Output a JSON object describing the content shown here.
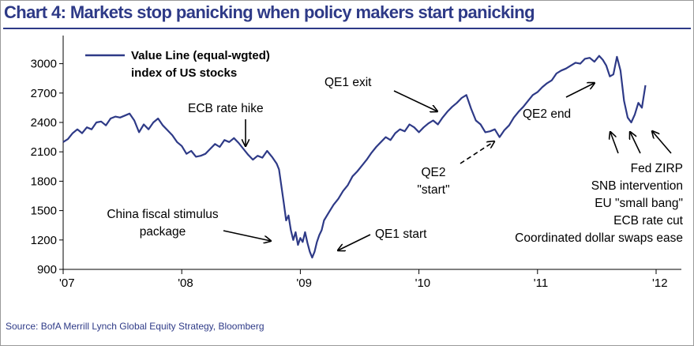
{
  "title": "Chart 4: Markets stop panicking when policy makers start panicking",
  "source": "Source: BofA Merrill Lynch Global Equity Strategy, Bloomberg",
  "colors": {
    "title": "#2e3a87",
    "series": "#2e3a87",
    "axis": "#000000",
    "arrow": "#000000"
  },
  "chart_data": {
    "type": "line",
    "title": "Chart 4: Markets stop panicking when policy makers start panicking",
    "xlabel": "",
    "ylabel": "",
    "xlim": [
      2007.0,
      2012.2
    ],
    "ylim": [
      900,
      3150
    ],
    "x_ticks": [
      2007,
      2008,
      2009,
      2010,
      2011,
      2012
    ],
    "x_tick_labels": [
      "'07",
      "'08",
      "'09",
      "'10",
      "'11",
      "'12"
    ],
    "y_ticks": [
      900,
      1200,
      1500,
      1800,
      2100,
      2400,
      2700,
      3000
    ],
    "y_tick_labels": [
      "900",
      "1200",
      "1500",
      "1800",
      "2100",
      "2400",
      "2700",
      "3000"
    ],
    "grid": false,
    "legend": "top-left",
    "series": [
      {
        "name": "Value Line (equal-wgted) index of US stocks",
        "x": [
          2007.0,
          2007.04,
          2007.08,
          2007.12,
          2007.16,
          2007.2,
          2007.24,
          2007.28,
          2007.32,
          2007.36,
          2007.4,
          2007.44,
          2007.48,
          2007.52,
          2007.56,
          2007.6,
          2007.64,
          2007.68,
          2007.72,
          2007.76,
          2007.8,
          2007.84,
          2007.88,
          2007.92,
          2007.96,
          2008.0,
          2008.04,
          2008.08,
          2008.12,
          2008.16,
          2008.2,
          2008.24,
          2008.28,
          2008.32,
          2008.36,
          2008.4,
          2008.44,
          2008.48,
          2008.52,
          2008.56,
          2008.6,
          2008.64,
          2008.68,
          2008.72,
          2008.76,
          2008.8,
          2008.82,
          2008.84,
          2008.86,
          2008.88,
          2008.9,
          2008.92,
          2008.94,
          2008.96,
          2008.98,
          2009.0,
          2009.02,
          2009.04,
          2009.06,
          2009.08,
          2009.1,
          2009.12,
          2009.14,
          2009.16,
          2009.18,
          2009.2,
          2009.24,
          2009.28,
          2009.32,
          2009.36,
          2009.4,
          2009.44,
          2009.48,
          2009.52,
          2009.56,
          2009.6,
          2009.64,
          2009.68,
          2009.72,
          2009.76,
          2009.8,
          2009.84,
          2009.88,
          2009.92,
          2009.96,
          2010.0,
          2010.04,
          2010.08,
          2010.12,
          2010.16,
          2010.2,
          2010.24,
          2010.28,
          2010.32,
          2010.36,
          2010.4,
          2010.44,
          2010.48,
          2010.52,
          2010.56,
          2010.6,
          2010.64,
          2010.68,
          2010.72,
          2010.76,
          2010.8,
          2010.84,
          2010.88,
          2010.92,
          2010.96,
          2011.0,
          2011.04,
          2011.08,
          2011.12,
          2011.16,
          2011.2,
          2011.24,
          2011.28,
          2011.32,
          2011.36,
          2011.4,
          2011.44,
          2011.48,
          2011.52,
          2011.55,
          2011.58,
          2011.61,
          2011.64,
          2011.67,
          2011.7,
          2011.73,
          2011.76,
          2011.79,
          2011.82,
          2011.85,
          2011.88,
          2011.91
        ],
        "y": [
          2200,
          2230,
          2290,
          2330,
          2290,
          2350,
          2330,
          2400,
          2410,
          2370,
          2440,
          2460,
          2450,
          2470,
          2490,
          2420,
          2300,
          2380,
          2330,
          2400,
          2440,
          2370,
          2320,
          2270,
          2200,
          2160,
          2080,
          2110,
          2050,
          2060,
          2080,
          2130,
          2180,
          2150,
          2220,
          2200,
          2240,
          2190,
          2130,
          2070,
          2020,
          2060,
          2040,
          2110,
          2050,
          1980,
          1920,
          1750,
          1580,
          1400,
          1450,
          1300,
          1200,
          1280,
          1150,
          1220,
          1180,
          1280,
          1170,
          1080,
          1020,
          1080,
          1180,
          1250,
          1300,
          1400,
          1480,
          1560,
          1620,
          1700,
          1760,
          1850,
          1900,
          1960,
          2020,
          2090,
          2150,
          2200,
          2250,
          2220,
          2290,
          2330,
          2310,
          2380,
          2350,
          2300,
          2350,
          2390,
          2420,
          2380,
          2450,
          2510,
          2560,
          2600,
          2650,
          2680,
          2540,
          2420,
          2380,
          2300,
          2310,
          2330,
          2250,
          2320,
          2370,
          2450,
          2510,
          2560,
          2620,
          2680,
          2710,
          2760,
          2800,
          2830,
          2900,
          2930,
          2950,
          2980,
          3010,
          3000,
          3050,
          3060,
          3020,
          3080,
          3040,
          2980,
          2870,
          2890,
          3070,
          2930,
          2620,
          2450,
          2400,
          2480,
          2600,
          2550,
          2780
        ]
      }
    ],
    "legend_entries": [
      "Value Line (equal-wgted)",
      "index of US stocks"
    ],
    "annotations": [
      {
        "id": "ecb-hike",
        "lines": [
          "ECB rate hike"
        ]
      },
      {
        "id": "china",
        "lines": [
          "China fiscal stimulus",
          "package"
        ]
      },
      {
        "id": "qe1-start",
        "lines": [
          "QE1 start"
        ]
      },
      {
        "id": "qe1-exit",
        "lines": [
          "QE1 exit"
        ]
      },
      {
        "id": "qe2-start",
        "lines": [
          "QE2",
          "\"start\""
        ]
      },
      {
        "id": "qe2-end",
        "lines": [
          "QE2 end"
        ]
      },
      {
        "id": "fed-list",
        "lines": [
          "Fed ZIRP",
          "SNB intervention",
          "EU \"small bang\"",
          "ECB rate cut",
          "Coordinated dollar swaps ease"
        ]
      }
    ]
  }
}
